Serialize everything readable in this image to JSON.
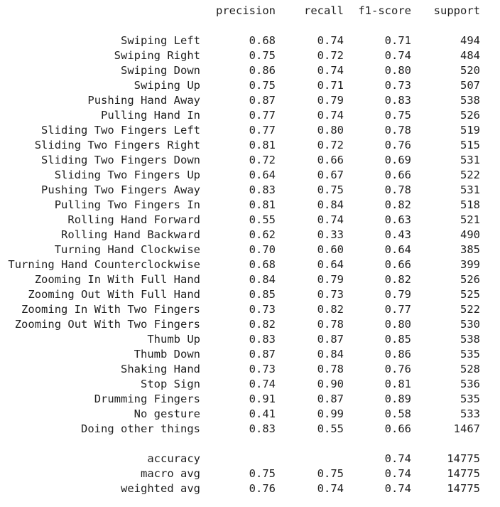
{
  "headers": {
    "precision": "precision",
    "recall": "recall",
    "f1": "f1-score",
    "support": "support"
  },
  "rows": [
    {
      "label": "Swiping Left",
      "precision": "0.68",
      "recall": "0.74",
      "f1": "0.71",
      "support": "494"
    },
    {
      "label": "Swiping Right",
      "precision": "0.75",
      "recall": "0.72",
      "f1": "0.74",
      "support": "484"
    },
    {
      "label": "Swiping Down",
      "precision": "0.86",
      "recall": "0.74",
      "f1": "0.80",
      "support": "520"
    },
    {
      "label": "Swiping Up",
      "precision": "0.75",
      "recall": "0.71",
      "f1": "0.73",
      "support": "507"
    },
    {
      "label": "Pushing Hand Away",
      "precision": "0.87",
      "recall": "0.79",
      "f1": "0.83",
      "support": "538"
    },
    {
      "label": "Pulling Hand In",
      "precision": "0.77",
      "recall": "0.74",
      "f1": "0.75",
      "support": "526"
    },
    {
      "label": "Sliding Two Fingers Left",
      "precision": "0.77",
      "recall": "0.80",
      "f1": "0.78",
      "support": "519"
    },
    {
      "label": "Sliding Two Fingers Right",
      "precision": "0.81",
      "recall": "0.72",
      "f1": "0.76",
      "support": "515"
    },
    {
      "label": "Sliding Two Fingers Down",
      "precision": "0.72",
      "recall": "0.66",
      "f1": "0.69",
      "support": "531"
    },
    {
      "label": "Sliding Two Fingers Up",
      "precision": "0.64",
      "recall": "0.67",
      "f1": "0.66",
      "support": "522"
    },
    {
      "label": "Pushing Two Fingers Away",
      "precision": "0.83",
      "recall": "0.75",
      "f1": "0.78",
      "support": "531"
    },
    {
      "label": "Pulling Two Fingers In",
      "precision": "0.81",
      "recall": "0.84",
      "f1": "0.82",
      "support": "518"
    },
    {
      "label": "Rolling Hand Forward",
      "precision": "0.55",
      "recall": "0.74",
      "f1": "0.63",
      "support": "521"
    },
    {
      "label": "Rolling Hand Backward",
      "precision": "0.62",
      "recall": "0.33",
      "f1": "0.43",
      "support": "490"
    },
    {
      "label": "Turning Hand Clockwise",
      "precision": "0.70",
      "recall": "0.60",
      "f1": "0.64",
      "support": "385"
    },
    {
      "label": "Turning Hand Counterclockwise",
      "precision": "0.68",
      "recall": "0.64",
      "f1": "0.66",
      "support": "399"
    },
    {
      "label": "Zooming In With Full Hand",
      "precision": "0.84",
      "recall": "0.79",
      "f1": "0.82",
      "support": "526"
    },
    {
      "label": "Zooming Out With Full Hand",
      "precision": "0.85",
      "recall": "0.73",
      "f1": "0.79",
      "support": "525"
    },
    {
      "label": "Zooming In With Two Fingers",
      "precision": "0.73",
      "recall": "0.82",
      "f1": "0.77",
      "support": "522"
    },
    {
      "label": "Zooming Out With Two Fingers",
      "precision": "0.82",
      "recall": "0.78",
      "f1": "0.80",
      "support": "530"
    },
    {
      "label": "Thumb Up",
      "precision": "0.83",
      "recall": "0.87",
      "f1": "0.85",
      "support": "538"
    },
    {
      "label": "Thumb Down",
      "precision": "0.87",
      "recall": "0.84",
      "f1": "0.86",
      "support": "535"
    },
    {
      "label": "Shaking Hand",
      "precision": "0.73",
      "recall": "0.78",
      "f1": "0.76",
      "support": "528"
    },
    {
      "label": "Stop Sign",
      "precision": "0.74",
      "recall": "0.90",
      "f1": "0.81",
      "support": "536"
    },
    {
      "label": "Drumming Fingers",
      "precision": "0.91",
      "recall": "0.87",
      "f1": "0.89",
      "support": "535"
    },
    {
      "label": "No gesture",
      "precision": "0.41",
      "recall": "0.99",
      "f1": "0.58",
      "support": "533"
    },
    {
      "label": "Doing other things",
      "precision": "0.83",
      "recall": "0.55",
      "f1": "0.66",
      "support": "1467"
    }
  ],
  "summary": [
    {
      "label": "accuracy",
      "precision": "",
      "recall": "",
      "f1": "0.74",
      "support": "14775"
    },
    {
      "label": "macro avg",
      "precision": "0.75",
      "recall": "0.75",
      "f1": "0.74",
      "support": "14775"
    },
    {
      "label": "weighted avg",
      "precision": "0.76",
      "recall": "0.74",
      "f1": "0.74",
      "support": "14775"
    }
  ]
}
